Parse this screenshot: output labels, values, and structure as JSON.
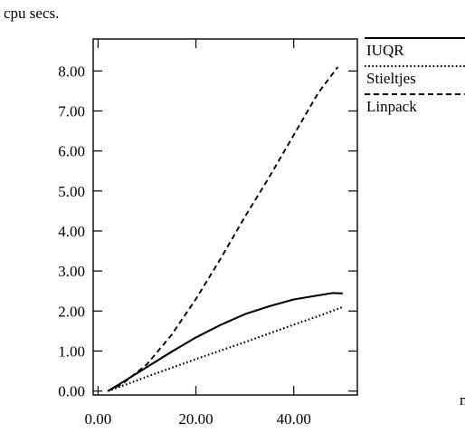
{
  "chart_data": {
    "type": "line",
    "title": "",
    "ylabel": "cpu secs.",
    "xlabel": "n",
    "xlim": [
      -1,
      53
    ],
    "ylim": [
      -0.1,
      8.8
    ],
    "xticks": [
      0,
      20,
      40
    ],
    "xtick_labels": [
      "0.00",
      "20.00",
      "40.00"
    ],
    "yticks": [
      0,
      1,
      2,
      3,
      4,
      5,
      6,
      7,
      8
    ],
    "ytick_labels": [
      "0.00",
      "1.00",
      "2.00",
      "3.00",
      "4.00",
      "5.00",
      "6.00",
      "7.00",
      "8.00"
    ],
    "grid": false,
    "legend_position": "right",
    "series": [
      {
        "name": "IUQR",
        "line_style": "solid",
        "x": [
          2,
          5,
          10,
          15,
          20,
          25,
          30,
          35,
          40,
          45,
          48,
          50
        ],
        "y": [
          0.0,
          0.22,
          0.6,
          0.98,
          1.34,
          1.65,
          1.92,
          2.12,
          2.29,
          2.39,
          2.45,
          2.44
        ]
      },
      {
        "name": "Stieltjes",
        "line_style": "dotted",
        "x": [
          2,
          5,
          10,
          15,
          20,
          25,
          30,
          35,
          40,
          45,
          50
        ],
        "y": [
          0.0,
          0.13,
          0.36,
          0.58,
          0.8,
          1.01,
          1.22,
          1.44,
          1.66,
          1.87,
          2.1
        ]
      },
      {
        "name": "Linpack",
        "line_style": "dashed",
        "x": [
          2,
          5,
          10,
          15,
          20,
          25,
          30,
          35,
          40,
          45,
          49
        ],
        "y": [
          0.0,
          0.18,
          0.67,
          1.4,
          2.3,
          3.3,
          4.35,
          5.35,
          6.4,
          7.45,
          8.1
        ]
      }
    ]
  }
}
